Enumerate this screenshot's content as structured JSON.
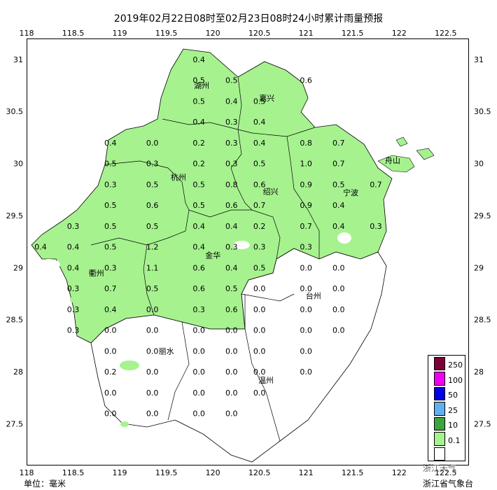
{
  "title": "2019年02月22日08时至02月23日08时24小时累计雨量预报",
  "footer": {
    "unit": "单位：毫米",
    "agency": "浙江省气象台",
    "watermark": "浙江天气"
  },
  "axes": {
    "x_ticks": [
      "118",
      "118.5",
      "119",
      "119.5",
      "120",
      "120.5",
      "121",
      "121.5",
      "122",
      "122.5"
    ],
    "y_ticks": [
      "31",
      "30.5",
      "30",
      "29.5",
      "29",
      "28.5",
      "28",
      "27.5"
    ]
  },
  "cities": [
    "湖州",
    "嘉兴",
    "杭州",
    "舟山",
    "绍兴",
    "宁波",
    "衢州",
    "金华",
    "台州",
    "丽水",
    "温州"
  ],
  "legend": {
    "items": [
      {
        "label": "250",
        "color": "#7f0035"
      },
      {
        "label": "100",
        "color": "#f000f0"
      },
      {
        "label": "50",
        "color": "#0000e6"
      },
      {
        "label": "25",
        "color": "#60b0ef"
      },
      {
        "label": "10",
        "color": "#3ea53e"
      },
      {
        "label": "0.1",
        "color": "#a6f28f"
      },
      {
        "label": "",
        "color": "#ffffff"
      }
    ]
  },
  "colors": {
    "rain_light": "#a6f28f",
    "border": "#000000"
  },
  "chart_data": {
    "type": "heatmap",
    "title": "2019年02月22日08时至02月23日08时24小时累计雨量预报",
    "x_range": [
      118,
      122.75
    ],
    "y_range": [
      27.1,
      31.2
    ],
    "units": "毫米",
    "points": [
      {
        "lon": 119.85,
        "lat": 31.0,
        "v": "0.4"
      },
      {
        "lon": 119.85,
        "lat": 30.8,
        "v": "0.5"
      },
      {
        "lon": 120.2,
        "lat": 30.8,
        "v": "0.5"
      },
      {
        "lon": 121.0,
        "lat": 30.8,
        "v": "0.6"
      },
      {
        "lon": 119.85,
        "lat": 30.6,
        "v": "0.5"
      },
      {
        "lon": 120.2,
        "lat": 30.6,
        "v": "0.4"
      },
      {
        "lon": 120.5,
        "lat": 30.6,
        "v": "0.5"
      },
      {
        "lon": 119.85,
        "lat": 30.4,
        "v": "0.4"
      },
      {
        "lon": 120.2,
        "lat": 30.4,
        "v": "0.3"
      },
      {
        "lon": 120.5,
        "lat": 30.4,
        "v": "0.4"
      },
      {
        "lon": 118.9,
        "lat": 30.2,
        "v": "0.4"
      },
      {
        "lon": 119.35,
        "lat": 30.2,
        "v": "0.0"
      },
      {
        "lon": 119.85,
        "lat": 30.2,
        "v": "0.2"
      },
      {
        "lon": 120.2,
        "lat": 30.2,
        "v": "0.3"
      },
      {
        "lon": 120.5,
        "lat": 30.2,
        "v": "0.4"
      },
      {
        "lon": 121.0,
        "lat": 30.2,
        "v": "0.8"
      },
      {
        "lon": 121.35,
        "lat": 30.2,
        "v": "0.7"
      },
      {
        "lon": 118.9,
        "lat": 30.0,
        "v": "0.5"
      },
      {
        "lon": 119.35,
        "lat": 30.0,
        "v": "0.3"
      },
      {
        "lon": 119.85,
        "lat": 30.0,
        "v": "0.2"
      },
      {
        "lon": 120.2,
        "lat": 30.0,
        "v": "0.3"
      },
      {
        "lon": 120.5,
        "lat": 30.0,
        "v": "0.5"
      },
      {
        "lon": 121.0,
        "lat": 30.0,
        "v": "1.0"
      },
      {
        "lon": 121.35,
        "lat": 30.0,
        "v": "0.7"
      },
      {
        "lon": 118.9,
        "lat": 29.8,
        "v": "0.3"
      },
      {
        "lon": 119.35,
        "lat": 29.8,
        "v": "0.5"
      },
      {
        "lon": 119.85,
        "lat": 29.8,
        "v": "0.5"
      },
      {
        "lon": 120.2,
        "lat": 29.8,
        "v": "0.8"
      },
      {
        "lon": 120.5,
        "lat": 29.8,
        "v": "0.6"
      },
      {
        "lon": 121.0,
        "lat": 29.8,
        "v": "0.9"
      },
      {
        "lon": 121.35,
        "lat": 29.8,
        "v": "0.5"
      },
      {
        "lon": 121.75,
        "lat": 29.8,
        "v": "0.7"
      },
      {
        "lon": 118.9,
        "lat": 29.6,
        "v": "0.5"
      },
      {
        "lon": 119.35,
        "lat": 29.6,
        "v": "0.6"
      },
      {
        "lon": 119.85,
        "lat": 29.6,
        "v": "0.5"
      },
      {
        "lon": 120.2,
        "lat": 29.6,
        "v": "0.6"
      },
      {
        "lon": 120.5,
        "lat": 29.6,
        "v": "0.7"
      },
      {
        "lon": 121.0,
        "lat": 29.6,
        "v": "0.9"
      },
      {
        "lon": 121.35,
        "lat": 29.6,
        "v": "0.4"
      },
      {
        "lon": 118.5,
        "lat": 29.4,
        "v": "0.3"
      },
      {
        "lon": 118.9,
        "lat": 29.4,
        "v": "0.5"
      },
      {
        "lon": 119.35,
        "lat": 29.4,
        "v": "0.5"
      },
      {
        "lon": 119.85,
        "lat": 29.4,
        "v": "0.4"
      },
      {
        "lon": 120.2,
        "lat": 29.4,
        "v": "0.4"
      },
      {
        "lon": 120.5,
        "lat": 29.4,
        "v": "0.2"
      },
      {
        "lon": 121.0,
        "lat": 29.4,
        "v": "0.7"
      },
      {
        "lon": 121.35,
        "lat": 29.4,
        "v": "0.4"
      },
      {
        "lon": 121.75,
        "lat": 29.4,
        "v": "0.3"
      },
      {
        "lon": 118.15,
        "lat": 29.2,
        "v": "0.4"
      },
      {
        "lon": 118.5,
        "lat": 29.2,
        "v": "0.4"
      },
      {
        "lon": 118.9,
        "lat": 29.2,
        "v": "0.5"
      },
      {
        "lon": 119.35,
        "lat": 29.2,
        "v": "1.2"
      },
      {
        "lon": 119.85,
        "lat": 29.2,
        "v": "0.4"
      },
      {
        "lon": 120.2,
        "lat": 29.2,
        "v": "0.3"
      },
      {
        "lon": 120.5,
        "lat": 29.2,
        "v": "0.3"
      },
      {
        "lon": 121.0,
        "lat": 29.2,
        "v": "0.3"
      },
      {
        "lon": 118.5,
        "lat": 29.0,
        "v": "0.4"
      },
      {
        "lon": 118.9,
        "lat": 29.0,
        "v": "0.3"
      },
      {
        "lon": 119.35,
        "lat": 29.0,
        "v": "1.1"
      },
      {
        "lon": 119.85,
        "lat": 29.0,
        "v": "0.6"
      },
      {
        "lon": 120.2,
        "lat": 29.0,
        "v": "0.4"
      },
      {
        "lon": 120.5,
        "lat": 29.0,
        "v": "0.5"
      },
      {
        "lon": 121.0,
        "lat": 29.0,
        "v": "0.0"
      },
      {
        "lon": 121.35,
        "lat": 29.0,
        "v": "0.0"
      },
      {
        "lon": 118.5,
        "lat": 28.8,
        "v": "0.3"
      },
      {
        "lon": 118.9,
        "lat": 28.8,
        "v": "0.7"
      },
      {
        "lon": 119.35,
        "lat": 28.8,
        "v": "0.5"
      },
      {
        "lon": 119.85,
        "lat": 28.8,
        "v": "0.6"
      },
      {
        "lon": 120.2,
        "lat": 28.8,
        "v": "0.5"
      },
      {
        "lon": 120.5,
        "lat": 28.8,
        "v": "0.0"
      },
      {
        "lon": 121.0,
        "lat": 28.8,
        "v": "0.0"
      },
      {
        "lon": 121.35,
        "lat": 28.8,
        "v": "0.0"
      },
      {
        "lon": 118.5,
        "lat": 28.6,
        "v": "0.3"
      },
      {
        "lon": 118.9,
        "lat": 28.6,
        "v": "0.4"
      },
      {
        "lon": 119.35,
        "lat": 28.6,
        "v": "0.0"
      },
      {
        "lon": 119.85,
        "lat": 28.6,
        "v": "0.3"
      },
      {
        "lon": 120.2,
        "lat": 28.6,
        "v": "0.6"
      },
      {
        "lon": 120.5,
        "lat": 28.6,
        "v": "0.0"
      },
      {
        "lon": 121.0,
        "lat": 28.6,
        "v": "0.0"
      },
      {
        "lon": 121.35,
        "lat": 28.6,
        "v": "0.0"
      },
      {
        "lon": 118.5,
        "lat": 28.4,
        "v": "0.3"
      },
      {
        "lon": 118.9,
        "lat": 28.4,
        "v": "0.0"
      },
      {
        "lon": 119.35,
        "lat": 28.4,
        "v": "0.0"
      },
      {
        "lon": 119.85,
        "lat": 28.4,
        "v": "0.0"
      },
      {
        "lon": 120.2,
        "lat": 28.4,
        "v": "0.0"
      },
      {
        "lon": 120.5,
        "lat": 28.4,
        "v": "0.0"
      },
      {
        "lon": 121.0,
        "lat": 28.4,
        "v": "0.0"
      },
      {
        "lon": 121.35,
        "lat": 28.4,
        "v": "0.0"
      },
      {
        "lon": 118.9,
        "lat": 28.2,
        "v": "0.0"
      },
      {
        "lon": 119.35,
        "lat": 28.2,
        "v": "0.0"
      },
      {
        "lon": 119.85,
        "lat": 28.2,
        "v": "0.0"
      },
      {
        "lon": 120.2,
        "lat": 28.2,
        "v": "0.0"
      },
      {
        "lon": 120.5,
        "lat": 28.2,
        "v": "0.0"
      },
      {
        "lon": 121.0,
        "lat": 28.2,
        "v": "0.0"
      },
      {
        "lon": 118.9,
        "lat": 28.0,
        "v": "0.2"
      },
      {
        "lon": 119.35,
        "lat": 28.0,
        "v": "0.0"
      },
      {
        "lon": 119.85,
        "lat": 28.0,
        "v": "0.0"
      },
      {
        "lon": 120.2,
        "lat": 28.0,
        "v": "0.0"
      },
      {
        "lon": 120.5,
        "lat": 28.0,
        "v": "0.0"
      },
      {
        "lon": 121.0,
        "lat": 28.0,
        "v": "0.0"
      },
      {
        "lon": 118.9,
        "lat": 27.8,
        "v": "0.0"
      },
      {
        "lon": 119.35,
        "lat": 27.8,
        "v": "0.0"
      },
      {
        "lon": 119.85,
        "lat": 27.8,
        "v": "0.0"
      },
      {
        "lon": 120.2,
        "lat": 27.8,
        "v": "0.0"
      },
      {
        "lon": 120.5,
        "lat": 27.8,
        "v": "0.0"
      },
      {
        "lon": 118.9,
        "lat": 27.6,
        "v": "0.0"
      },
      {
        "lon": 119.35,
        "lat": 27.6,
        "v": "0.0"
      },
      {
        "lon": 119.85,
        "lat": 27.6,
        "v": "0.0"
      },
      {
        "lon": 120.2,
        "lat": 27.6,
        "v": "0.0"
      }
    ]
  }
}
